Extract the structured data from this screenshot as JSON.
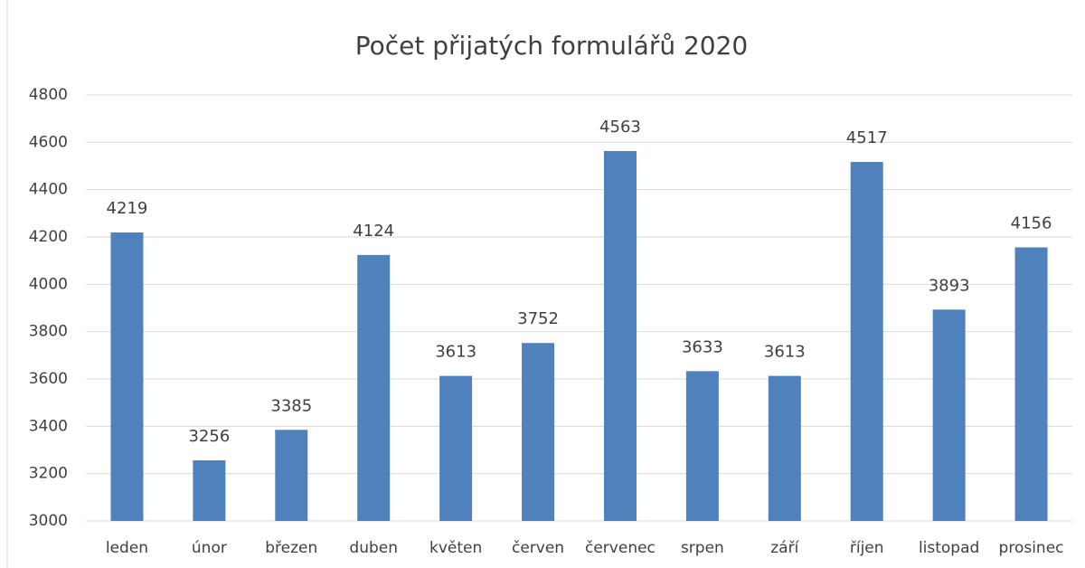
{
  "chart_data": {
    "type": "bar",
    "title": "Počet přijatých formulářů 2020",
    "categories": [
      "leden",
      "únor",
      "březen",
      "duben",
      "květen",
      "červen",
      "červenec",
      "srpen",
      "září",
      "říjen",
      "listopad",
      "prosinec"
    ],
    "values": [
      4219,
      3256,
      3385,
      4124,
      3613,
      3752,
      4563,
      3633,
      3613,
      4517,
      3893,
      4156
    ],
    "color": "#4f81bd",
    "ylim": [
      3000,
      4800
    ],
    "yticks": [
      3000,
      3200,
      3400,
      3600,
      3800,
      4000,
      4200,
      4400,
      4600,
      4800
    ],
    "grid": true
  }
}
